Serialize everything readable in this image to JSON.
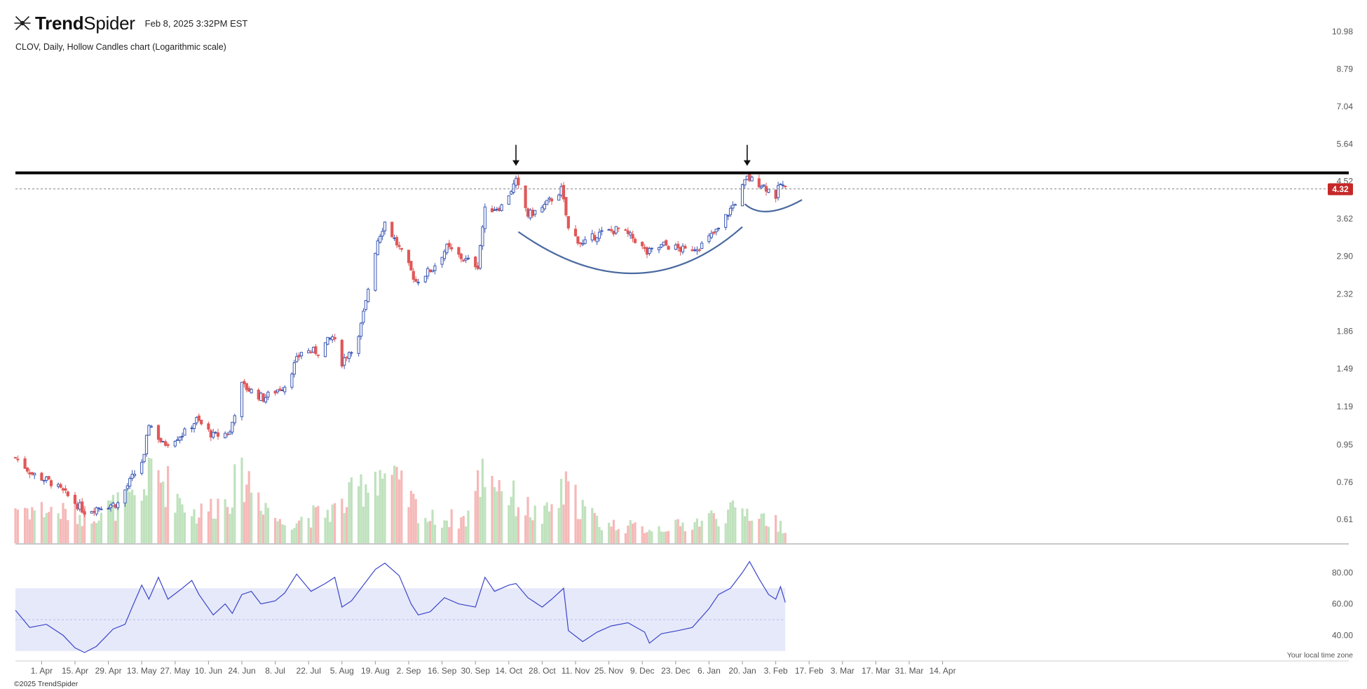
{
  "header": {
    "brand_part1": "Trend",
    "brand_part2": "Spider",
    "timestamp": "Feb 8, 2025 3:32PM EST"
  },
  "subtitle": "CLOV, Daily, Hollow Candles chart (Logarithmic scale)",
  "copyright": "©2025 TrendSpider",
  "colors": {
    "up": "#3a57b5",
    "down": "#e05858",
    "vol_up": "#bfe2bd",
    "vol_down": "#f6b8b8",
    "resistance": "#000000",
    "arc": "#4a6aa0",
    "rsi_line": "#3b45c9",
    "rsi_band": "#e6e9fa",
    "price_tag": "#c62828"
  },
  "chart_data": [
    {
      "type": "candlestick",
      "title": "CLOV, Daily, Hollow Candles chart (Logarithmic scale)",
      "yscale": "log",
      "ylim": [
        0.53,
        11.2
      ],
      "yticks": [
        "10.98",
        "8.79",
        "7.04",
        "5.64",
        "4.52",
        "3.62",
        "2.90",
        "2.32",
        "1.86",
        "1.49",
        "1.19",
        "0.95",
        "0.76",
        "0.61"
      ],
      "last_price_label": "4.32",
      "last_price": 4.32,
      "resistance_level": 4.75,
      "date_range": [
        "2024-03-21",
        "2025-02-07"
      ],
      "xticks": [
        "1. Apr",
        "15. Apr",
        "29. Apr",
        "13. May",
        "27. May",
        "10. Jun",
        "24. Jun",
        "8. Jul",
        "22. Jul",
        "5. Aug",
        "19. Aug",
        "2. Sep",
        "16. Sep",
        "30. Sep",
        "14. Oct",
        "28. Oct",
        "11. Nov",
        "25. Nov",
        "9. Dec",
        "23. Dec",
        "6. Jan",
        "20. Jan",
        "3. Feb",
        "17. Feb",
        "3. Mar",
        "17. Mar",
        "31. Mar",
        "14. Apr"
      ],
      "time_zone_note": "Your local time zone",
      "close_path": [
        [
          "2024-03-21",
          0.88
        ],
        [
          "2024-03-28",
          0.8
        ],
        [
          "2024-04-05",
          0.76
        ],
        [
          "2024-04-12",
          0.7
        ],
        [
          "2024-04-19",
          0.64
        ],
        [
          "2024-04-26",
          0.66
        ],
        [
          "2024-05-03",
          0.67
        ],
        [
          "2024-05-10",
          0.8
        ],
        [
          "2024-05-14",
          0.88
        ],
        [
          "2024-05-16",
          1.08
        ],
        [
          "2024-05-22",
          0.95
        ],
        [
          "2024-05-31",
          1.02
        ],
        [
          "2024-06-05",
          1.1
        ],
        [
          "2024-06-12",
          1.0
        ],
        [
          "2024-06-19",
          1.02
        ],
        [
          "2024-06-24",
          1.35
        ],
        [
          "2024-07-03",
          1.25
        ],
        [
          "2024-07-12",
          1.35
        ],
        [
          "2024-07-19",
          1.65
        ],
        [
          "2024-07-26",
          1.65
        ],
        [
          "2024-08-01",
          1.8
        ],
        [
          "2024-08-05",
          1.55
        ],
        [
          "2024-08-12",
          1.78
        ],
        [
          "2024-08-15",
          2.2
        ],
        [
          "2024-08-20",
          3.2
        ],
        [
          "2024-08-23",
          3.55
        ],
        [
          "2024-08-30",
          2.95
        ],
        [
          "2024-09-05",
          2.5
        ],
        [
          "2024-09-12",
          2.7
        ],
        [
          "2024-09-18",
          3.05
        ],
        [
          "2024-09-25",
          2.85
        ],
        [
          "2024-10-01",
          2.75
        ],
        [
          "2024-10-04",
          3.8
        ],
        [
          "2024-10-11",
          3.9
        ],
        [
          "2024-10-17",
          4.5
        ],
        [
          "2024-10-22",
          3.7
        ],
        [
          "2024-10-28",
          3.85
        ],
        [
          "2024-11-05",
          4.3
        ],
        [
          "2024-11-08",
          3.4
        ],
        [
          "2024-11-14",
          3.1
        ],
        [
          "2024-11-20",
          3.3
        ],
        [
          "2024-11-29",
          3.4
        ],
        [
          "2024-12-06",
          3.2
        ],
        [
          "2024-12-11",
          2.95
        ],
        [
          "2024-12-18",
          3.1
        ],
        [
          "2024-12-27",
          3.0
        ],
        [
          "2025-01-03",
          3.1
        ],
        [
          "2025-01-10",
          3.4
        ],
        [
          "2025-01-17",
          4.0
        ],
        [
          "2025-01-22",
          4.6
        ],
        [
          "2025-01-28",
          4.45
        ],
        [
          "2025-02-03",
          4.15
        ],
        [
          "2025-02-05",
          4.45
        ],
        [
          "2025-02-07",
          4.32
        ]
      ],
      "annotations": [
        {
          "type": "arrow_down",
          "date": "2024-10-17",
          "price": 4.75
        },
        {
          "type": "arrow_down",
          "date": "2025-01-22",
          "price": 4.75
        },
        {
          "type": "arc",
          "from": [
            "2024-10-18",
            3.35
          ],
          "bottom": [
            "2024-12-06",
            2.62
          ],
          "to": [
            "2025-01-20",
            3.45
          ]
        },
        {
          "type": "arc",
          "from": [
            "2025-01-21",
            3.95
          ],
          "bottom": [
            "2025-01-31",
            3.78
          ],
          "to": [
            "2025-02-14",
            4.05
          ]
        }
      ]
    },
    {
      "type": "bar",
      "title": "",
      "series": [
        {
          "values_note": "daily volume, green on up days, red on down days"
        }
      ],
      "volume_profile": [
        [
          "2024-03-21",
          0.45
        ],
        [
          "2024-04-19",
          0.35
        ],
        [
          "2024-05-13",
          0.55
        ],
        [
          "2024-05-16",
          0.95
        ],
        [
          "2024-06-05",
          0.35
        ],
        [
          "2024-06-17",
          0.55
        ],
        [
          "2024-06-25",
          0.85
        ],
        [
          "2024-07-10",
          0.25
        ],
        [
          "2024-07-26",
          0.35
        ],
        [
          "2024-08-05",
          0.45
        ],
        [
          "2024-08-20",
          0.92
        ],
        [
          "2024-08-28",
          0.7
        ],
        [
          "2024-09-10",
          0.3
        ],
        [
          "2024-09-26",
          0.3
        ],
        [
          "2024-10-04",
          0.95
        ],
        [
          "2024-10-16",
          0.55
        ],
        [
          "2024-10-28",
          0.3
        ],
        [
          "2024-11-07",
          0.65
        ],
        [
          "2024-11-21",
          0.25
        ],
        [
          "2024-12-10",
          0.18
        ],
        [
          "2024-12-27",
          0.22
        ],
        [
          "2025-01-10",
          0.35
        ],
        [
          "2025-01-22",
          0.4
        ],
        [
          "2025-02-07",
          0.2
        ]
      ]
    },
    {
      "type": "line",
      "title": "",
      "ylim": [
        25,
        92
      ],
      "yticks": [
        "80.00",
        "60.00",
        "40.00"
      ],
      "band": [
        30,
        70
      ],
      "midline": 50,
      "points": [
        [
          "2024-03-21",
          56
        ],
        [
          "2024-03-27",
          45
        ],
        [
          "2024-04-03",
          47
        ],
        [
          "2024-04-10",
          40
        ],
        [
          "2024-04-15",
          32
        ],
        [
          "2024-04-19",
          29
        ],
        [
          "2024-04-24",
          33
        ],
        [
          "2024-05-01",
          44
        ],
        [
          "2024-05-06",
          47
        ],
        [
          "2024-05-09",
          58
        ],
        [
          "2024-05-13",
          72
        ],
        [
          "2024-05-16",
          63
        ],
        [
          "2024-05-20",
          77
        ],
        [
          "2024-05-24",
          63
        ],
        [
          "2024-05-30",
          70
        ],
        [
          "2024-06-03",
          75
        ],
        [
          "2024-06-06",
          66
        ],
        [
          "2024-06-12",
          53
        ],
        [
          "2024-06-17",
          60
        ],
        [
          "2024-06-20",
          54
        ],
        [
          "2024-06-24",
          66
        ],
        [
          "2024-06-28",
          68
        ],
        [
          "2024-07-02",
          60
        ],
        [
          "2024-07-08",
          62
        ],
        [
          "2024-07-12",
          67
        ],
        [
          "2024-07-17",
          79
        ],
        [
          "2024-07-23",
          68
        ],
        [
          "2024-07-29",
          73
        ],
        [
          "2024-08-02",
          77
        ],
        [
          "2024-08-05",
          58
        ],
        [
          "2024-08-09",
          62
        ],
        [
          "2024-08-13",
          70
        ],
        [
          "2024-08-19",
          82
        ],
        [
          "2024-08-23",
          86
        ],
        [
          "2024-08-29",
          78
        ],
        [
          "2024-09-03",
          60
        ],
        [
          "2024-09-06",
          53
        ],
        [
          "2024-09-11",
          55
        ],
        [
          "2024-09-17",
          64
        ],
        [
          "2024-09-23",
          60
        ],
        [
          "2024-09-30",
          58
        ],
        [
          "2024-10-04",
          77
        ],
        [
          "2024-10-08",
          68
        ],
        [
          "2024-10-14",
          72
        ],
        [
          "2024-10-17",
          73
        ],
        [
          "2024-10-22",
          64
        ],
        [
          "2024-10-28",
          58
        ],
        [
          "2024-11-01",
          63
        ],
        [
          "2024-11-06",
          70
        ],
        [
          "2024-11-08",
          43
        ],
        [
          "2024-11-14",
          36
        ],
        [
          "2024-11-20",
          42
        ],
        [
          "2024-11-26",
          46
        ],
        [
          "2024-12-03",
          48
        ],
        [
          "2024-12-10",
          42
        ],
        [
          "2024-12-12",
          35
        ],
        [
          "2024-12-17",
          41
        ],
        [
          "2024-12-24",
          43
        ],
        [
          "2024-12-30",
          45
        ],
        [
          "2025-01-06",
          57
        ],
        [
          "2025-01-10",
          66
        ],
        [
          "2025-01-15",
          70
        ],
        [
          "2025-01-20",
          80
        ],
        [
          "2025-01-23",
          87
        ],
        [
          "2025-01-27",
          76
        ],
        [
          "2025-01-31",
          66
        ],
        [
          "2025-02-03",
          63
        ],
        [
          "2025-02-05",
          71
        ],
        [
          "2025-02-07",
          61
        ]
      ]
    }
  ]
}
